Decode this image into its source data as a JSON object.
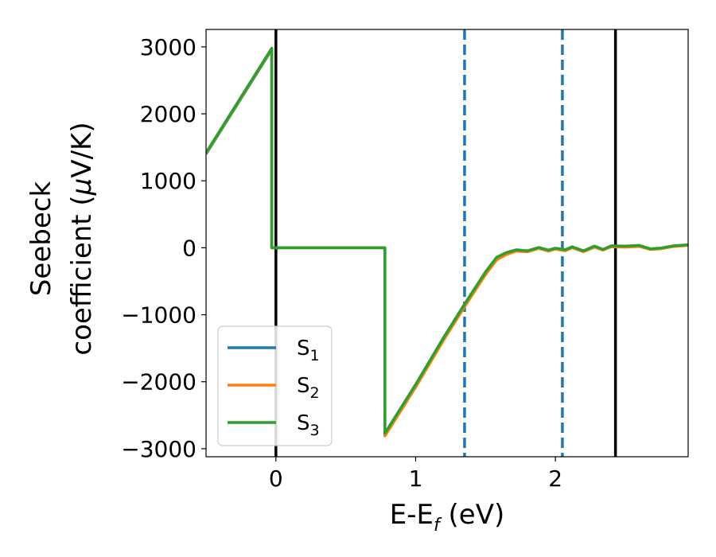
{
  "chart_data": {
    "type": "line",
    "xlabel": "E-E",
    "xlabel_sub": "f",
    "xlabel_unit": " (eV)",
    "ylabel_line1": "Seebeck",
    "ylabel_line2": "coefficient  (",
    "ylabel_mu": "μ",
    "ylabel_unit": "V/K)",
    "xlim": [
      -0.5,
      2.95
    ],
    "ylim": [
      -3120,
      3260
    ],
    "xticks": [
      0,
      1,
      2
    ],
    "xtick_labels": [
      "0",
      "1",
      "2"
    ],
    "yticks": [
      3000,
      2000,
      1000,
      0,
      -1000,
      -2000,
      -3000
    ],
    "ytick_labels": [
      "3000",
      "2000",
      "1000",
      "0",
      "−1000",
      "−2000",
      "−3000"
    ],
    "grid": false,
    "legend_position": "lower-left",
    "vlines": [
      {
        "x": 0.0,
        "style": "solid",
        "color": "#000000"
      },
      {
        "x": 1.35,
        "style": "dashed",
        "color": "#1f77b4"
      },
      {
        "x": 2.05,
        "style": "dashed",
        "color": "#1f77b4"
      },
      {
        "x": 2.43,
        "style": "solid",
        "color": "#000000"
      }
    ],
    "series": [
      {
        "name": "S",
        "name_sub": "1",
        "color": "#1f77b4",
        "points": [
          [
            -0.5,
            1400
          ],
          [
            -0.03,
            2960
          ],
          [
            -0.03,
            0
          ],
          [
            0.78,
            0
          ],
          [
            0.78,
            -2790
          ],
          [
            1.0,
            -2060
          ],
          [
            1.2,
            -1360
          ],
          [
            1.35,
            -860
          ],
          [
            1.5,
            -380
          ],
          [
            1.58,
            -160
          ],
          [
            1.65,
            -85
          ],
          [
            1.72,
            -40
          ],
          [
            1.8,
            -55
          ],
          [
            1.88,
            0
          ],
          [
            1.95,
            -40
          ],
          [
            2.0,
            -10
          ],
          [
            2.07,
            -35
          ],
          [
            2.12,
            10
          ],
          [
            2.2,
            -50
          ],
          [
            2.28,
            20
          ],
          [
            2.34,
            -30
          ],
          [
            2.4,
            25
          ],
          [
            2.5,
            20
          ],
          [
            2.6,
            30
          ],
          [
            2.68,
            -20
          ],
          [
            2.75,
            -10
          ],
          [
            2.85,
            25
          ],
          [
            2.95,
            40
          ]
        ]
      },
      {
        "name": "S",
        "name_sub": "2",
        "color": "#ff7f0e",
        "points": [
          [
            -0.5,
            1410
          ],
          [
            -0.03,
            2970
          ],
          [
            -0.03,
            0
          ],
          [
            0.78,
            0
          ],
          [
            0.78,
            -2810
          ],
          [
            1.0,
            -2080
          ],
          [
            1.2,
            -1380
          ],
          [
            1.35,
            -880
          ],
          [
            1.5,
            -400
          ],
          [
            1.58,
            -180
          ],
          [
            1.65,
            -100
          ],
          [
            1.72,
            -50
          ],
          [
            1.8,
            -60
          ],
          [
            1.88,
            -10
          ],
          [
            1.95,
            -50
          ],
          [
            2.0,
            -20
          ],
          [
            2.07,
            -45
          ],
          [
            2.12,
            0
          ],
          [
            2.2,
            -60
          ],
          [
            2.28,
            10
          ],
          [
            2.34,
            -35
          ],
          [
            2.4,
            15
          ],
          [
            2.5,
            10
          ],
          [
            2.6,
            20
          ],
          [
            2.68,
            -25
          ],
          [
            2.75,
            -15
          ],
          [
            2.85,
            20
          ],
          [
            2.95,
            35
          ]
        ]
      },
      {
        "name": "S",
        "name_sub": "3",
        "color": "#2ca02c",
        "points": [
          [
            -0.5,
            1420
          ],
          [
            -0.03,
            2980
          ],
          [
            -0.03,
            0
          ],
          [
            0.78,
            0
          ],
          [
            0.78,
            -2770
          ],
          [
            1.0,
            -2040
          ],
          [
            1.2,
            -1340
          ],
          [
            1.35,
            -840
          ],
          [
            1.5,
            -360
          ],
          [
            1.58,
            -140
          ],
          [
            1.65,
            -70
          ],
          [
            1.72,
            -30
          ],
          [
            1.8,
            -45
          ],
          [
            1.88,
            5
          ],
          [
            1.95,
            -35
          ],
          [
            2.0,
            -5
          ],
          [
            2.07,
            -30
          ],
          [
            2.12,
            15
          ],
          [
            2.2,
            -45
          ],
          [
            2.28,
            25
          ],
          [
            2.34,
            -25
          ],
          [
            2.4,
            30
          ],
          [
            2.5,
            25
          ],
          [
            2.6,
            35
          ],
          [
            2.68,
            -15
          ],
          [
            2.75,
            -5
          ],
          [
            2.85,
            30
          ],
          [
            2.95,
            45
          ]
        ]
      }
    ]
  }
}
